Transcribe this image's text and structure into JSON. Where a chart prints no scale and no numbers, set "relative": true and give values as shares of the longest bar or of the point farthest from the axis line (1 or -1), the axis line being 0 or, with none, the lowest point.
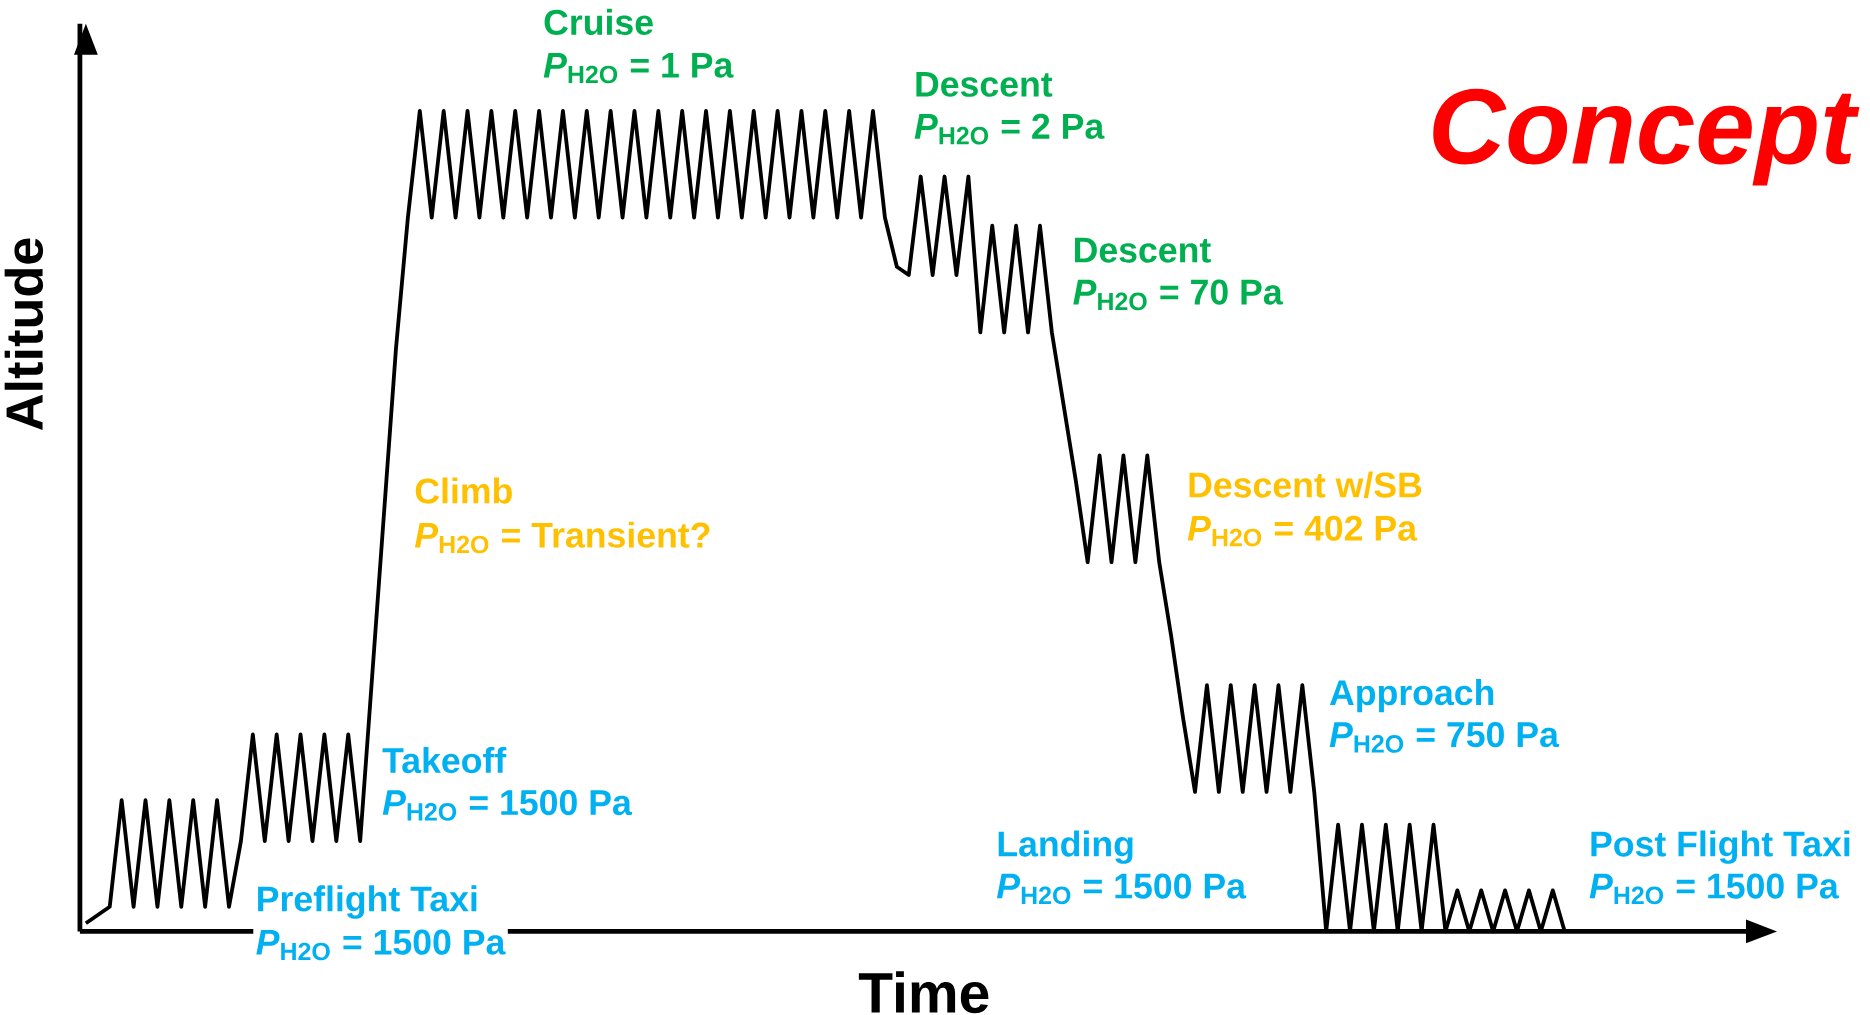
{
  "chart_data": {
    "type": "line",
    "relative": true,
    "xlabel": "Time",
    "ylabel": "Altitude",
    "categories": [
      null,
      null,
      null,
      null,
      null,
      null,
      null,
      null,
      null,
      null,
      null,
      null,
      null,
      null,
      null,
      null,
      null,
      null,
      null,
      null,
      null,
      null,
      null,
      null,
      null,
      null,
      null,
      null,
      null,
      null,
      null,
      null,
      null,
      null,
      null,
      null,
      null,
      null,
      null,
      null,
      null,
      null,
      null,
      null,
      null,
      null,
      null,
      null,
      null,
      null,
      null,
      null,
      null,
      null,
      null,
      null,
      null,
      null,
      null,
      null,
      null,
      null,
      null,
      null,
      null,
      null,
      null,
      null,
      null,
      null,
      null,
      null,
      null,
      null,
      null,
      null,
      null,
      null,
      null,
      null,
      null,
      null,
      null,
      null,
      null,
      null,
      null,
      null,
      null,
      null,
      null,
      null,
      null,
      null,
      null,
      null,
      null,
      null,
      null,
      null,
      null,
      null,
      null,
      null,
      null,
      null,
      null,
      null,
      null,
      null,
      null,
      null,
      null,
      null,
      null,
      null,
      null,
      null,
      null,
      null,
      null,
      null,
      null,
      null,
      null
    ],
    "series": [
      {
        "color": "#000000",
        "values": [
          0.01,
          0.02,
          0.03,
          0.16,
          0.03,
          0.16,
          0.03,
          0.16,
          0.03,
          0.16,
          0.03,
          0.16,
          0.03,
          0.11,
          0.24,
          0.11,
          0.24,
          0.11,
          0.24,
          0.11,
          0.24,
          0.11,
          0.24,
          0.11,
          0.31,
          0.51,
          0.71,
          0.87,
          1,
          0.87,
          1,
          0.87,
          1,
          0.87,
          1,
          0.87,
          1,
          0.87,
          1,
          0.87,
          1,
          0.87,
          1,
          0.87,
          1,
          0.87,
          1,
          0.87,
          1,
          0.87,
          1,
          0.87,
          1,
          0.87,
          1,
          0.87,
          1,
          0.87,
          1,
          0.87,
          1,
          0.87,
          1,
          0.87,
          1,
          0.87,
          1,
          0.87,
          0.81,
          0.8,
          0.92,
          0.8,
          0.92,
          0.8,
          0.92,
          0.73,
          0.86,
          0.73,
          0.86,
          0.73,
          0.86,
          0.73,
          0.64,
          0.55,
          0.45,
          0.58,
          0.45,
          0.58,
          0.45,
          0.58,
          0.45,
          0.36,
          0.26,
          0.17,
          0.3,
          0.17,
          0.3,
          0.17,
          0.3,
          0.17,
          0.3,
          0.17,
          0.3,
          0.17,
          0,
          0.13,
          0,
          0.13,
          0,
          0.13,
          0,
          0.13,
          0,
          0.13,
          0,
          0.05,
          0,
          0.05,
          0,
          0.05,
          0,
          0.05,
          0,
          0.05,
          0
        ]
      }
    ],
    "annotations": [
      "Cruise",
      "*P*$_{H2O}$ = 1 Pa",
      "Descent",
      "*P*$_{H2O}$ = 2 Pa",
      "Descent",
      "*P*$_{H2O}$ = 70 Pa",
      "Climb",
      "*P*$_{H2O}$ = Transient?",
      "Descent w/SB",
      "*P*$_{H2O}$ = 402 Pa",
      "Takeoff",
      "*P*$_{H2O}$ = 1500 Pa",
      "Approach",
      "*P*$_{H2O}$ = 750 Pa",
      "Landing",
      "*P*$_{H2O}$ = 1500 Pa",
      "Preflight Taxi",
      "*P*$_{H2O}$ = 1500 Pa",
      "Post Flight Taxi",
      "*P*$_{H2O}$ = 1500 Pa",
      "Concept"
    ],
    "line_style": "solid",
    "marker": "none"
  }
}
